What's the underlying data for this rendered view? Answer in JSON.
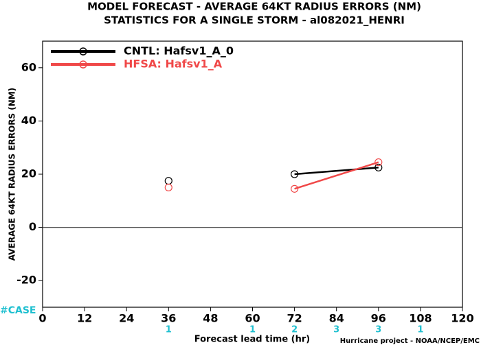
{
  "chart_data": {
    "type": "line",
    "title": "MODEL FORECAST - AVERAGE 64KT RADIUS ERRORS (NM)",
    "subtitle": "STATISTICS FOR A SINGLE STORM - al082021_HENRI",
    "x_label": "Forecast lead time (hr)",
    "y_label": "AVERAGE 64KT RADIUS ERRORS (NM)",
    "footer": "Hurricane project - NOAA/NCEP/EMC",
    "x": [
      36,
      48,
      72,
      96
    ],
    "series": [
      {
        "name": "CNTL: Hafsv1_A_0",
        "color": "#000000",
        "values": [
          17.5,
          null,
          20,
          22.5
        ]
      },
      {
        "name": "HFSA: Hafsv1_A",
        "color": "#f04848",
        "values": [
          15,
          null,
          14.5,
          24.5
        ]
      }
    ],
    "xlim": [
      0,
      120
    ],
    "xticks": [
      0,
      12,
      24,
      36,
      48,
      60,
      72,
      84,
      96,
      108,
      120
    ],
    "ylim": [
      -30,
      70
    ],
    "yticks": [
      -20,
      0,
      20,
      40,
      60
    ],
    "reference_line": 0,
    "legend": "top-left",
    "cases": {
      "label": "#CASE",
      "color": "#20c0d0",
      "x": [
        36,
        60,
        72,
        84,
        96,
        108
      ],
      "counts": [
        1,
        1,
        2,
        3,
        3,
        1
      ]
    }
  }
}
